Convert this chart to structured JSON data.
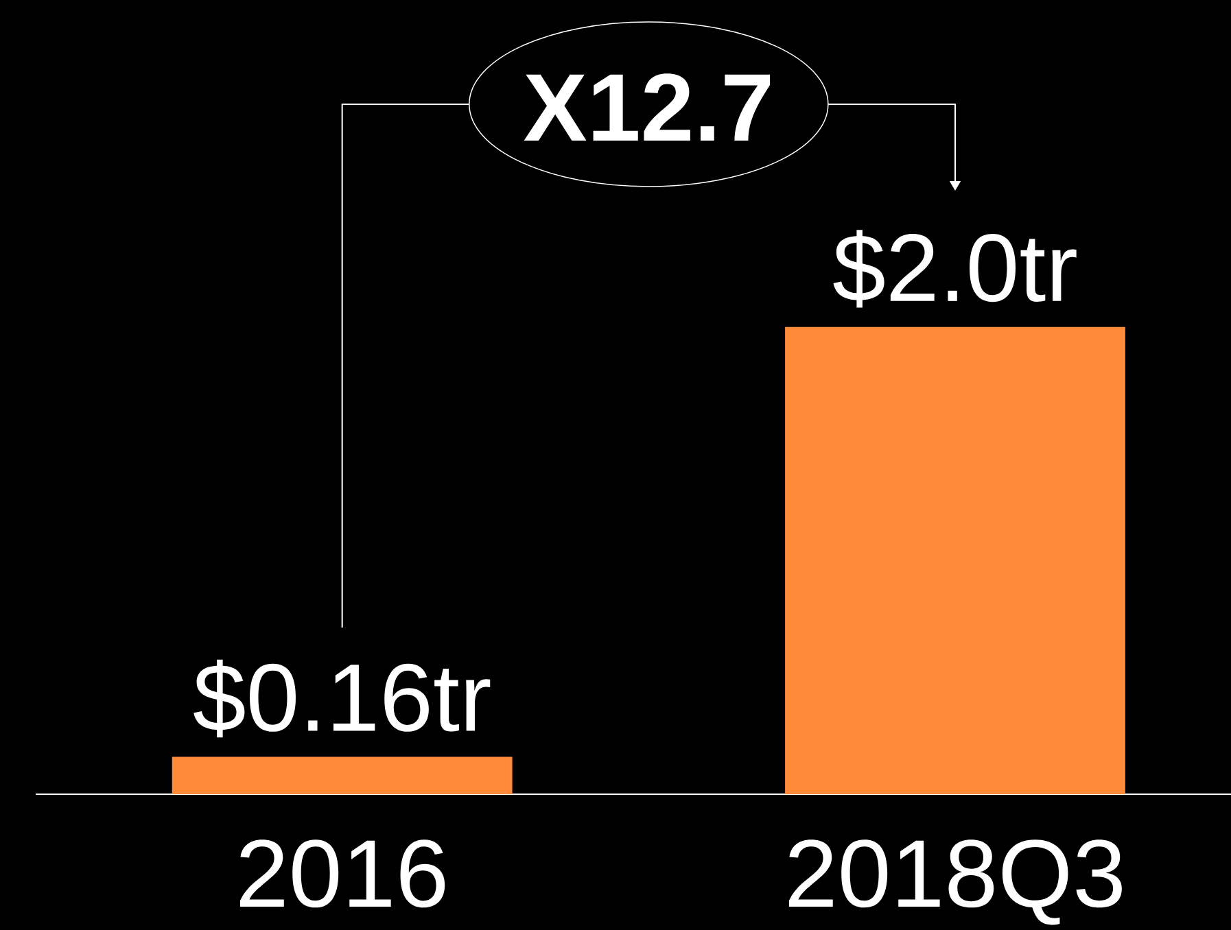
{
  "chart_data": {
    "type": "bar",
    "categories": [
      "2016",
      "2018Q3"
    ],
    "values": [
      0.16,
      2.0
    ],
    "color": "#ff8a3a",
    "value_labels": [
      "$0.16tr",
      "$2.0tr"
    ],
    "ylim": [
      0,
      3.4
    ],
    "annotations": [
      "X12.7"
    ]
  }
}
